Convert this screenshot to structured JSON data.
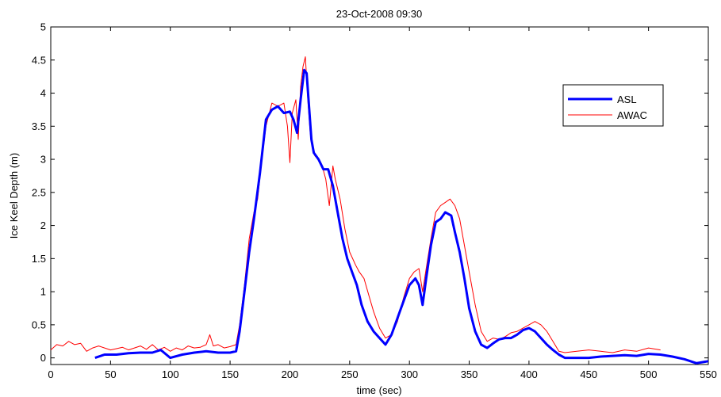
{
  "chart_data": {
    "type": "line",
    "title": "23-Oct-2008 09:30",
    "xlabel": "time (sec)",
    "ylabel": "Ice Keel Depth (m)",
    "xlim": [
      0,
      550
    ],
    "ylim": [
      -0.1,
      5
    ],
    "xticks": [
      0,
      50,
      100,
      150,
      200,
      250,
      300,
      350,
      400,
      450,
      500,
      550
    ],
    "yticks": [
      0,
      0.5,
      1,
      1.5,
      2,
      2.5,
      3,
      3.5,
      4,
      4.5,
      5
    ],
    "xtick_labels": [
      "0",
      "50",
      "100",
      "150",
      "200",
      "250",
      "300",
      "350",
      "400",
      "450",
      "500",
      "550"
    ],
    "ytick_labels": [
      "0",
      "0.5",
      "1",
      "1.5",
      "2",
      "2.5",
      "3",
      "3.5",
      "4",
      "4.5",
      "5"
    ],
    "grid": false,
    "legend_position": "top-right",
    "series": [
      {
        "name": "ASL",
        "color": "#0000ff",
        "line_style": "thick",
        "x": [
          37,
          45,
          55,
          65,
          75,
          85,
          92,
          100,
          110,
          120,
          130,
          140,
          150,
          155,
          158,
          162,
          166,
          170,
          175,
          180,
          185,
          190,
          195,
          200,
          203,
          206,
          209,
          212,
          214,
          216,
          218,
          220,
          224,
          228,
          232,
          236,
          240,
          244,
          248,
          252,
          256,
          260,
          265,
          270,
          275,
          280,
          285,
          290,
          295,
          300,
          305,
          308,
          311,
          314,
          318,
          322,
          326,
          330,
          335,
          338,
          342,
          346,
          350,
          355,
          360,
          365,
          370,
          375,
          380,
          385,
          390,
          395,
          400,
          405,
          410,
          415,
          420,
          425,
          430,
          440,
          450,
          460,
          470,
          480,
          490,
          500,
          510,
          520,
          530,
          540,
          550
        ],
        "y": [
          0.0,
          0.05,
          0.05,
          0.07,
          0.08,
          0.08,
          0.12,
          0.0,
          0.05,
          0.08,
          0.1,
          0.08,
          0.08,
          0.1,
          0.4,
          1.0,
          1.6,
          2.1,
          2.8,
          3.6,
          3.75,
          3.8,
          3.7,
          3.72,
          3.6,
          3.4,
          3.9,
          4.35,
          4.3,
          3.8,
          3.3,
          3.1,
          3.0,
          2.85,
          2.85,
          2.6,
          2.2,
          1.8,
          1.5,
          1.3,
          1.1,
          0.8,
          0.55,
          0.4,
          0.3,
          0.2,
          0.35,
          0.6,
          0.85,
          1.1,
          1.2,
          1.1,
          0.8,
          1.2,
          1.7,
          2.05,
          2.1,
          2.2,
          2.15,
          1.9,
          1.6,
          1.2,
          0.75,
          0.4,
          0.2,
          0.15,
          0.22,
          0.28,
          0.3,
          0.3,
          0.35,
          0.42,
          0.45,
          0.4,
          0.3,
          0.2,
          0.12,
          0.05,
          0.0,
          0.0,
          0.0,
          0.02,
          0.03,
          0.04,
          0.03,
          0.06,
          0.05,
          0.02,
          -0.02,
          -0.08,
          -0.05
        ]
      },
      {
        "name": "AWAC",
        "color": "#ff0000",
        "line_style": "thin",
        "x": [
          0,
          5,
          10,
          15,
          20,
          25,
          30,
          35,
          40,
          45,
          50,
          55,
          60,
          65,
          70,
          75,
          80,
          85,
          90,
          95,
          100,
          105,
          110,
          115,
          120,
          125,
          130,
          133,
          136,
          140,
          145,
          150,
          155,
          158,
          162,
          166,
          170,
          173,
          176,
          180,
          185,
          190,
          195,
          198,
          200,
          202,
          205,
          207,
          209,
          211,
          213,
          215,
          217,
          219,
          221,
          224,
          227,
          230,
          233,
          236,
          238,
          242,
          246,
          250,
          255,
          258,
          262,
          266,
          270,
          275,
          280,
          285,
          290,
          295,
          300,
          304,
          308,
          311,
          314,
          318,
          322,
          326,
          330,
          334,
          338,
          342,
          346,
          350,
          355,
          360,
          365,
          370,
          375,
          380,
          385,
          390,
          395,
          400,
          405,
          410,
          415,
          420,
          425,
          430,
          440,
          450,
          460,
          470,
          480,
          490,
          500,
          510
        ],
        "y": [
          0.12,
          0.2,
          0.18,
          0.25,
          0.2,
          0.22,
          0.1,
          0.15,
          0.18,
          0.15,
          0.12,
          0.14,
          0.16,
          0.12,
          0.15,
          0.18,
          0.13,
          0.2,
          0.12,
          0.16,
          0.1,
          0.15,
          0.12,
          0.18,
          0.15,
          0.16,
          0.2,
          0.35,
          0.18,
          0.2,
          0.15,
          0.17,
          0.2,
          0.5,
          1.1,
          1.8,
          2.2,
          2.4,
          2.9,
          3.5,
          3.85,
          3.8,
          3.85,
          3.5,
          2.95,
          3.7,
          3.9,
          3.3,
          4.1,
          4.4,
          4.55,
          3.9,
          3.4,
          3.15,
          3.05,
          3.0,
          2.9,
          2.7,
          2.3,
          2.9,
          2.7,
          2.4,
          1.95,
          1.6,
          1.4,
          1.3,
          1.2,
          0.95,
          0.7,
          0.45,
          0.3,
          0.35,
          0.55,
          0.9,
          1.2,
          1.3,
          1.35,
          1.0,
          1.35,
          1.8,
          2.2,
          2.3,
          2.35,
          2.4,
          2.3,
          2.1,
          1.7,
          1.3,
          0.8,
          0.4,
          0.25,
          0.3,
          0.28,
          0.32,
          0.38,
          0.4,
          0.45,
          0.5,
          0.55,
          0.5,
          0.4,
          0.25,
          0.1,
          0.08,
          0.1,
          0.12,
          0.1,
          0.08,
          0.12,
          0.1,
          0.15,
          0.12
        ]
      }
    ]
  }
}
